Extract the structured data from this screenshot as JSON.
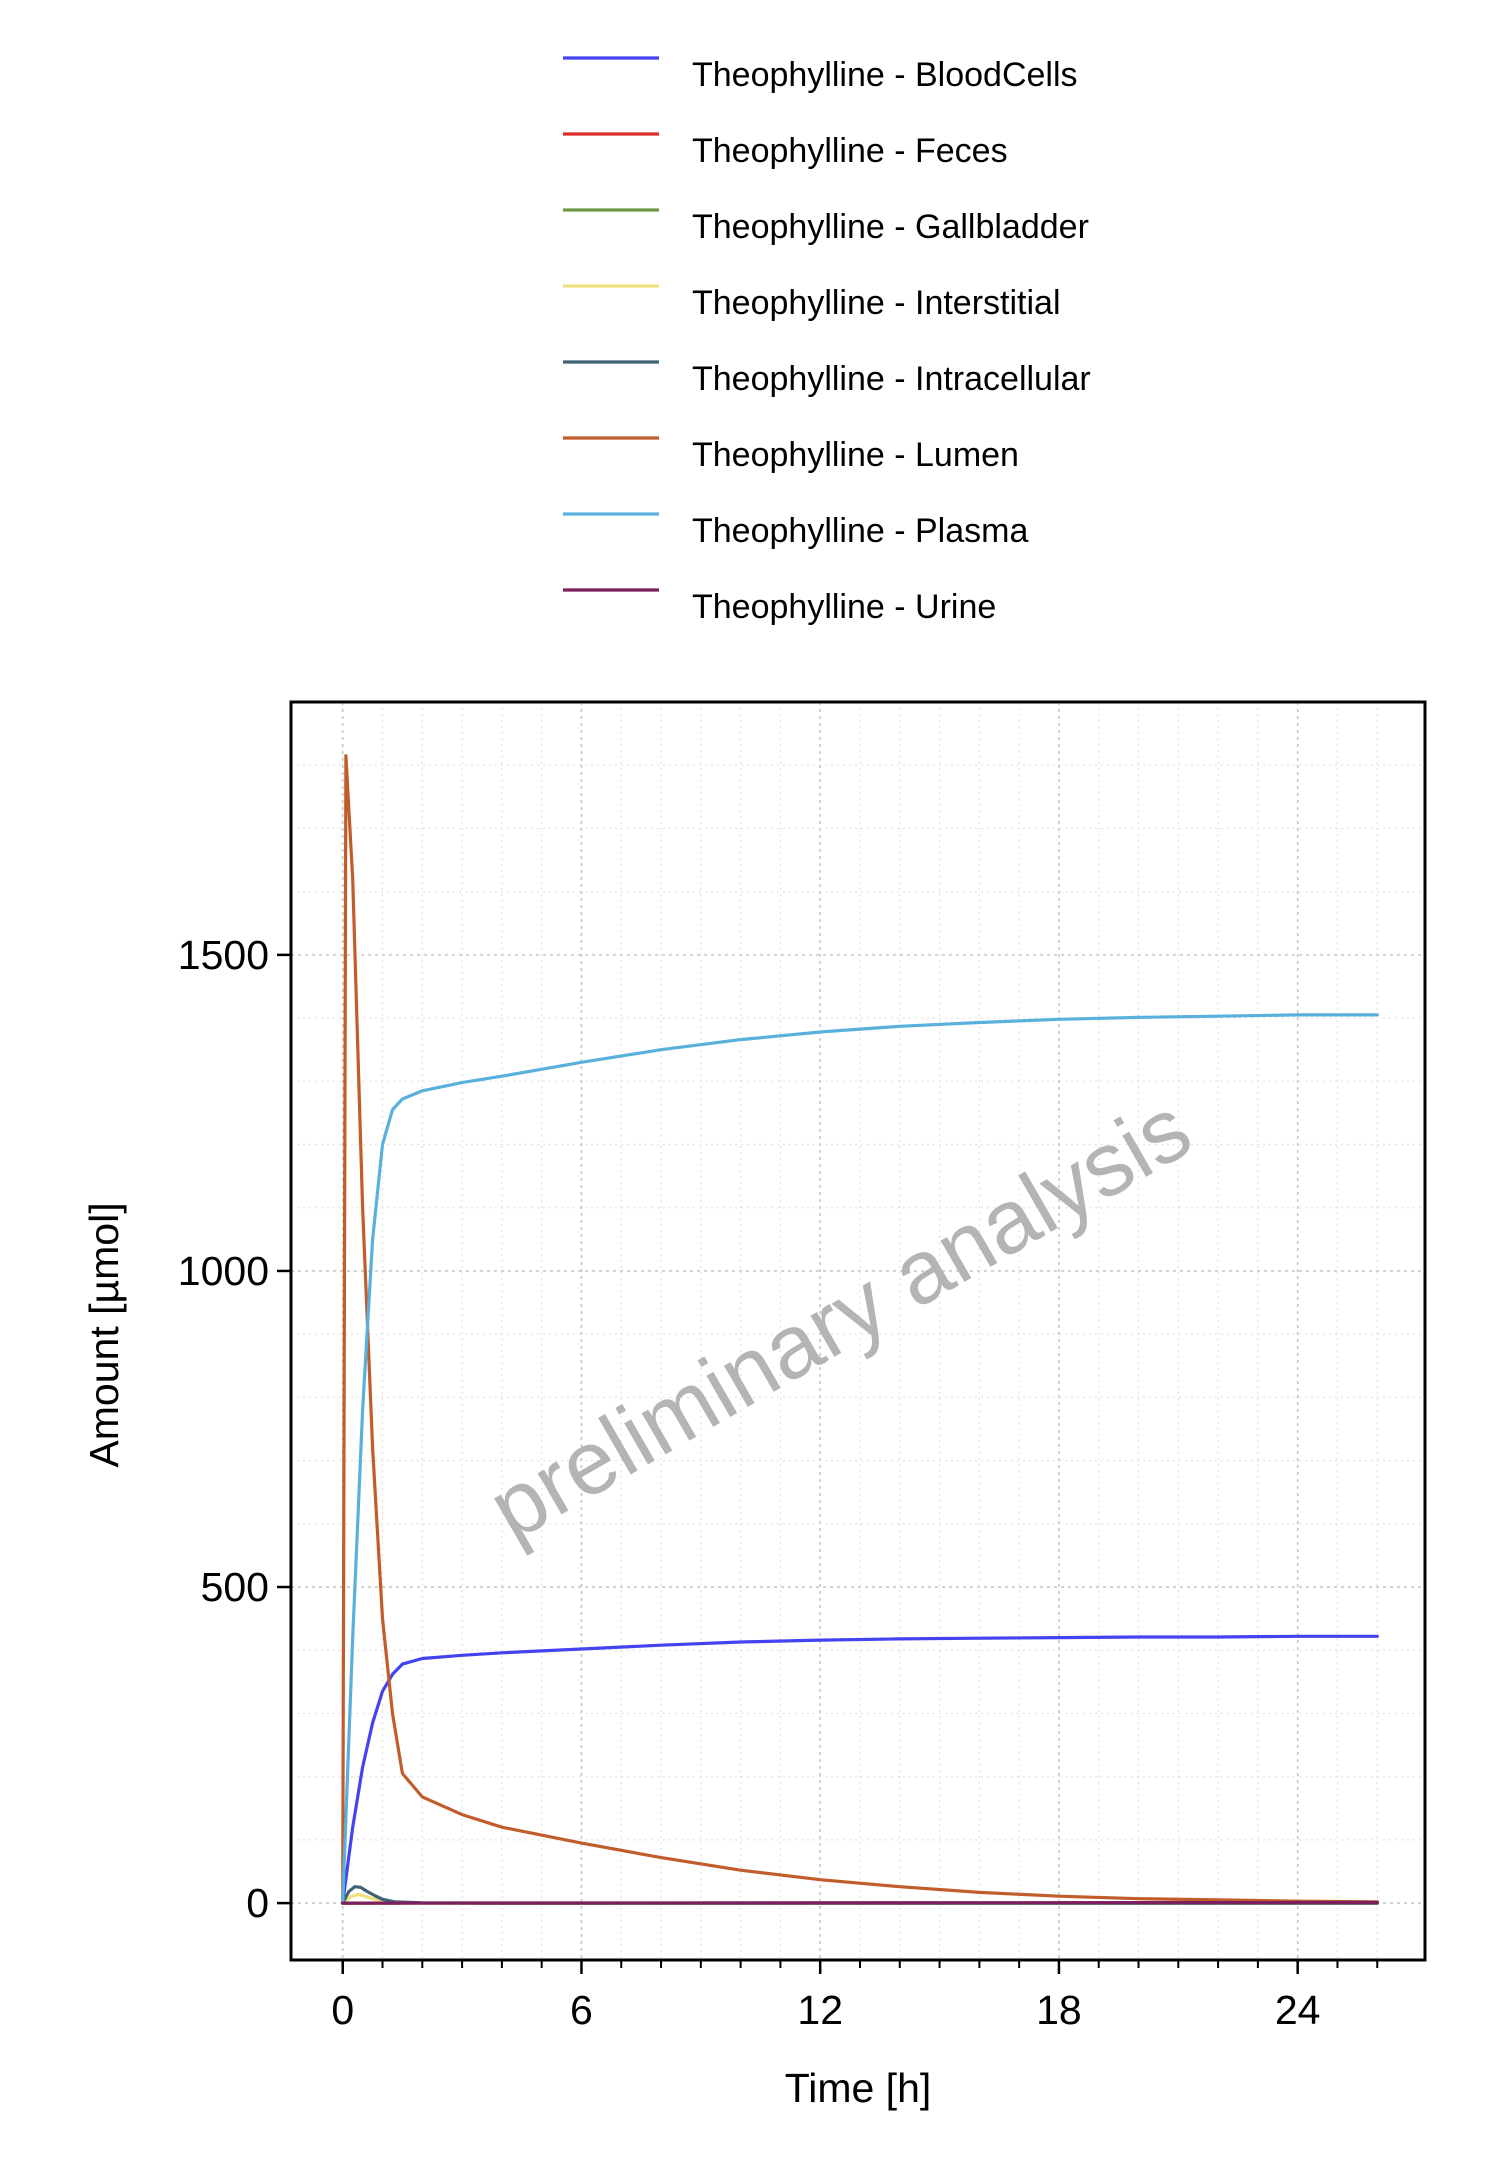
{
  "chart_data": {
    "type": "line",
    "xlabel": "Time [h]",
    "ylabel": "Amount [µmol]",
    "watermark": "preliminary analysis",
    "xlim": [
      -1.3,
      27.2
    ],
    "ylim": [
      -90,
      1900
    ],
    "x_ticks": [
      0,
      6,
      12,
      18,
      24
    ],
    "y_ticks": [
      0,
      500,
      1000,
      1500
    ],
    "x_minor_step": 1,
    "y_minor_step": 100,
    "grid": true,
    "legend_position": "top",
    "series": [
      {
        "name": "Theophylline - BloodCells",
        "color": "#4343f0",
        "x": [
          0,
          0.25,
          0.5,
          0.75,
          1.0,
          1.25,
          1.5,
          2,
          3,
          4,
          6,
          8,
          10,
          12,
          14,
          16,
          18,
          20,
          22,
          24,
          26
        ],
        "y": [
          0,
          120,
          215,
          285,
          335,
          362,
          378,
          387,
          392,
          396,
          402,
          408,
          413,
          416,
          418,
          419,
          420,
          421,
          421,
          422,
          422
        ]
      },
      {
        "name": "Theophylline - Feces",
        "color": "#dc2a2a",
        "x": [
          0,
          26
        ],
        "y": [
          0,
          0
        ]
      },
      {
        "name": "Theophylline - Gallbladder",
        "color": "#6e9a48",
        "x": [
          0,
          26
        ],
        "y": [
          0,
          0
        ]
      },
      {
        "name": "Theophylline - Interstitial",
        "color": "#f0e07c",
        "x": [
          0,
          0.2,
          0.4,
          0.7,
          1,
          1.5,
          26
        ],
        "y": [
          0,
          10,
          14,
          8,
          3,
          0,
          0
        ]
      },
      {
        "name": "Theophylline - Intracellular",
        "color": "#3f6276",
        "x": [
          0,
          0.15,
          0.3,
          0.45,
          0.6,
          0.8,
          1.0,
          1.3,
          2,
          4,
          26
        ],
        "y": [
          0,
          18,
          26,
          25,
          19,
          12,
          6,
          2,
          0.5,
          0,
          0
        ]
      },
      {
        "name": "Theophylline - Lumen",
        "color": "#c05d2a",
        "x": [
          0,
          0.08,
          0.25,
          0.5,
          0.75,
          1.0,
          1.25,
          1.5,
          2,
          3,
          4,
          6,
          8,
          10,
          12,
          14,
          16,
          18,
          20,
          22,
          24,
          26
        ],
        "y": [
          0,
          1815,
          1620,
          1100,
          720,
          450,
          300,
          205,
          168,
          140,
          120,
          95,
          72,
          52,
          37,
          26,
          17,
          11,
          7,
          5,
          3,
          2
        ]
      },
      {
        "name": "Theophylline - Plasma",
        "color": "#5ab0dc",
        "x": [
          0,
          0.25,
          0.5,
          0.75,
          1.0,
          1.25,
          1.5,
          2,
          3,
          4,
          6,
          8,
          10,
          12,
          14,
          16,
          18,
          20,
          22,
          24,
          26
        ],
        "y": [
          0,
          420,
          780,
          1050,
          1200,
          1255,
          1272,
          1285,
          1298,
          1308,
          1330,
          1350,
          1366,
          1378,
          1387,
          1393,
          1398,
          1401,
          1403,
          1405,
          1405
        ]
      },
      {
        "name": "Theophylline - Urine",
        "color": "#7b1f5e",
        "x": [
          0,
          26
        ],
        "y": [
          0,
          1
        ]
      }
    ]
  }
}
